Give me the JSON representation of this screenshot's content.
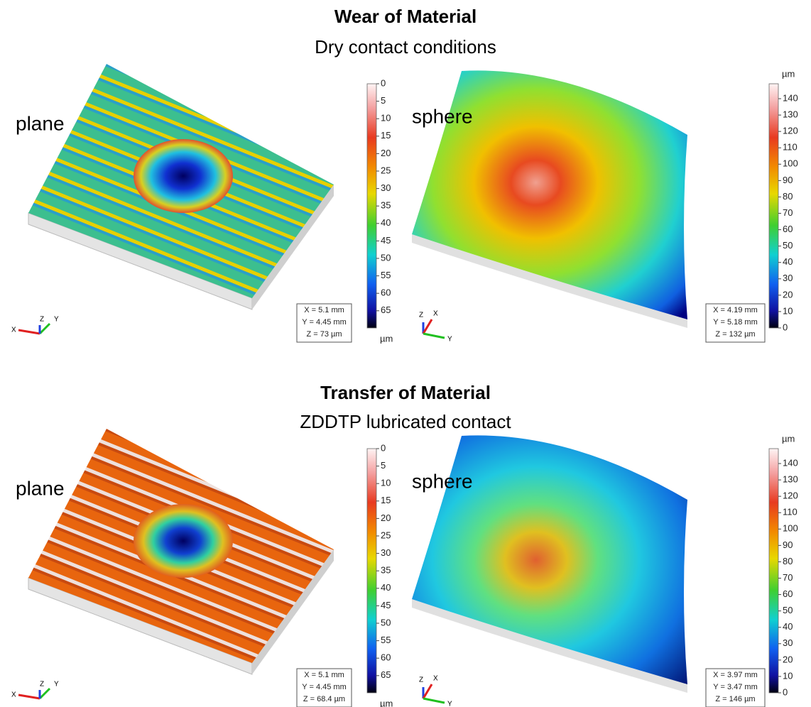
{
  "sections": [
    {
      "title": "Wear of Material",
      "subtitle": "Dry contact conditions",
      "panels": [
        {
          "label": "plane",
          "colorbar": {
            "ticks": [
              0,
              5,
              10,
              15,
              20,
              25,
              30,
              35,
              40,
              45,
              50,
              55,
              60,
              65
            ],
            "unit": "µm"
          },
          "dims": [
            "X = 5.1 mm",
            "Y = 4.45 mm",
            "Z = 73 µm"
          ],
          "axes": [
            "X",
            "Z",
            "Y"
          ]
        },
        {
          "label": "sphere",
          "colorbar": {
            "ticks": [
              140,
              130,
              120,
              110,
              100,
              90,
              80,
              70,
              60,
              50,
              40,
              30,
              20,
              10,
              0
            ],
            "unit": "µm"
          },
          "dims": [
            "X = 4.19 mm",
            "Y = 5.18 mm",
            "Z = 132 µm"
          ],
          "axes": [
            "Z",
            "X",
            "Y"
          ]
        }
      ]
    },
    {
      "title": "Transfer of Material",
      "subtitle": "ZDDTP lubricated contact",
      "panels": [
        {
          "label": "plane",
          "colorbar": {
            "ticks": [
              0,
              5,
              10,
              15,
              20,
              25,
              30,
              35,
              40,
              45,
              50,
              55,
              60,
              65
            ],
            "unit": "µm"
          },
          "dims": [
            "X = 5.1 mm",
            "Y = 4.45 mm",
            "Z = 68.4 µm"
          ],
          "axes": [
            "X",
            "Z",
            "Y"
          ]
        },
        {
          "label": "sphere",
          "colorbar": {
            "ticks": [
              140,
              130,
              120,
              110,
              100,
              90,
              80,
              70,
              60,
              50,
              40,
              30,
              20,
              10,
              0
            ],
            "unit": "µm"
          },
          "dims": [
            "X = 3.97 mm",
            "Y = 3.47 mm",
            "Z = 146 µm"
          ],
          "axes": [
            "Z",
            "X",
            "Y"
          ]
        }
      ]
    }
  ]
}
